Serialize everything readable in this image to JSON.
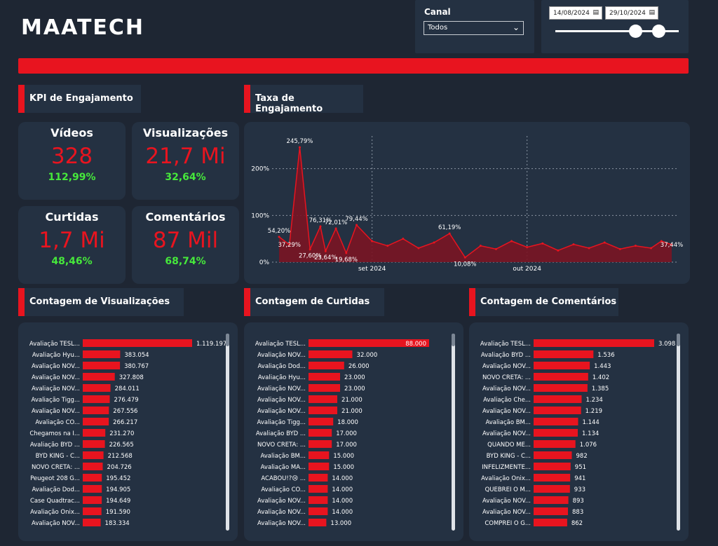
{
  "logo": "MAATECH",
  "filters": {
    "canal_label": "Canal",
    "canal_value": "Todos",
    "date_start": "14/08/2024",
    "date_end": "29/10/2024"
  },
  "sections": {
    "kpi": "KPI de Engajamento",
    "rate": "Taxa de Engajamento",
    "views": "Contagem de Visualizações",
    "likes": "Contagem de Curtidas",
    "comments": "Contagem de Comentários"
  },
  "kpis": [
    {
      "label": "Vídeos",
      "value": "328",
      "delta": "112,99%"
    },
    {
      "label": "Visualizações",
      "value": "21,7 Mi",
      "delta": "32,64%"
    },
    {
      "label": "Curtidas",
      "value": "1,7 Mi",
      "delta": "48,46%"
    },
    {
      "label": "Comentários",
      "value": "87 Mil",
      "delta": "68,74%"
    }
  ],
  "colors": {
    "accent": "#e8141f",
    "positive": "#46e83b",
    "panel": "#243142",
    "background": "#1e2633"
  },
  "chart_data": [
    {
      "type": "area",
      "title": "Taxa de Engajamento",
      "y_ticks": [
        "0%",
        "100%",
        "200%"
      ],
      "x_ticks": [
        "set 2024",
        "out 2024"
      ],
      "ylim": [
        0,
        270
      ],
      "x": [
        "2024-08-14",
        "2024-08-16",
        "2024-08-18",
        "2024-08-20",
        "2024-08-22",
        "2024-08-23",
        "2024-08-25",
        "2024-08-27",
        "2024-08-29",
        "2024-09-01",
        "2024-09-04",
        "2024-09-07",
        "2024-09-10",
        "2024-09-13",
        "2024-09-16",
        "2024-09-19",
        "2024-09-22",
        "2024-09-25",
        "2024-09-28",
        "2024-10-01",
        "2024-10-04",
        "2024-10-07",
        "2024-10-10",
        "2024-10-13",
        "2024-10-16",
        "2024-10-19",
        "2024-10-22",
        "2024-10-25",
        "2024-10-27",
        "2024-10-29"
      ],
      "values": [
        54.2,
        37.29,
        245.79,
        27.6,
        76.31,
        23.64,
        72.01,
        19.68,
        79.44,
        45,
        35,
        50,
        30,
        42,
        61.19,
        10.08,
        35,
        28,
        45,
        32,
        40,
        25,
        38,
        30,
        42,
        28,
        35,
        30,
        45,
        37.44
      ],
      "labels": [
        {
          "index": 0,
          "text": "54,20%"
        },
        {
          "index": 1,
          "text": "37,29%"
        },
        {
          "index": 2,
          "text": "245,79%"
        },
        {
          "index": 3,
          "text": "27,60%"
        },
        {
          "index": 4,
          "text": "76,31%"
        },
        {
          "index": 5,
          "text": "23,64%"
        },
        {
          "index": 6,
          "text": "72,01%"
        },
        {
          "index": 7,
          "text": "19,68%"
        },
        {
          "index": 8,
          "text": "79,44%"
        },
        {
          "index": 14,
          "text": "61,19%"
        },
        {
          "index": 15,
          "text": "10,08%"
        },
        {
          "index": 29,
          "text": "37,44%"
        }
      ]
    },
    {
      "type": "bar",
      "title": "Contagem de Visualizações",
      "categories": [
        "Avaliação TESL...",
        "Avaliação Hyu...",
        "Avaliação NOV...",
        "Avaliação NOV...",
        "Avaliação NOV...",
        "Avaliação Tigg...",
        "Avaliação NOV...",
        "Avaliação CO...",
        "Chegamos na I...",
        "Avaliação BYD ...",
        "BYD KING - C...",
        "NOVO CRETA: ...",
        "Peugeot 208 G...",
        "Avaliação Dod...",
        "Case Quadtrac...",
        "Avaliação Onix...",
        "Avaliação NOV..."
      ],
      "values": [
        1119197,
        383054,
        380767,
        327808,
        284011,
        276479,
        267556,
        266217,
        231270,
        226565,
        212568,
        204726,
        195452,
        194905,
        194649,
        191590,
        183334
      ],
      "value_labels": [
        "1.119.197",
        "383.054",
        "380.767",
        "327.808",
        "284.011",
        "276.479",
        "267.556",
        "266.217",
        "231.270",
        "226.565",
        "212.568",
        "204.726",
        "195.452",
        "194.905",
        "194.649",
        "191.590",
        "183.334"
      ]
    },
    {
      "type": "bar",
      "title": "Contagem de Curtidas",
      "categories": [
        "Avaliação TESL...",
        "Avaliação NOV...",
        "Avaliação Dod...",
        "Avaliação Hyu...",
        "Avaliação NOV...",
        "Avaliação NOV...",
        "Avaliação NOV...",
        "Avaliação Tigg...",
        "Avaliação BYD ...",
        "NOVO CRETA: ...",
        "Avaliação BM...",
        "Avaliação MA...",
        "ACABOU!?😢 ...",
        "Avaliação CO...",
        "Avaliação NOV...",
        "Avaliação NOV...",
        "Avaliação NOV..."
      ],
      "values": [
        88000,
        32000,
        26000,
        23000,
        23000,
        21000,
        21000,
        18000,
        17000,
        17000,
        15000,
        15000,
        14000,
        14000,
        14000,
        14000,
        13000
      ],
      "value_labels": [
        "88.000",
        "32.000",
        "26.000",
        "23.000",
        "23.000",
        "21.000",
        "21.000",
        "18.000",
        "17.000",
        "17.000",
        "15.000",
        "15.000",
        "14.000",
        "14.000",
        "14.000",
        "14.000",
        "13.000"
      ]
    },
    {
      "type": "bar",
      "title": "Contagem de Comentários",
      "categories": [
        "Avaliação TESL...",
        "Avaliação BYD ...",
        "Avaliação NOV...",
        "NOVO CRETA: ...",
        "Avaliação NOV...",
        "Avaliação Che...",
        "Avaliação NOV...",
        "Avaliação BM...",
        "Avaliação NOV...",
        "QUANDO ME...",
        "BYD KING - C...",
        "INFELIZMENTE...",
        "Avaliação Onix...",
        "QUEBREI O M...",
        "Avaliação NOV...",
        "Avaliação NOV...",
        "COMPREI O G..."
      ],
      "values": [
        3098,
        1536,
        1443,
        1402,
        1385,
        1234,
        1219,
        1144,
        1134,
        1076,
        982,
        951,
        941,
        933,
        893,
        883,
        862
      ],
      "value_labels": [
        "3.098",
        "1.536",
        "1.443",
        "1.402",
        "1.385",
        "1.234",
        "1.219",
        "1.144",
        "1.134",
        "1.076",
        "982",
        "951",
        "941",
        "933",
        "893",
        "883",
        "862"
      ]
    }
  ]
}
